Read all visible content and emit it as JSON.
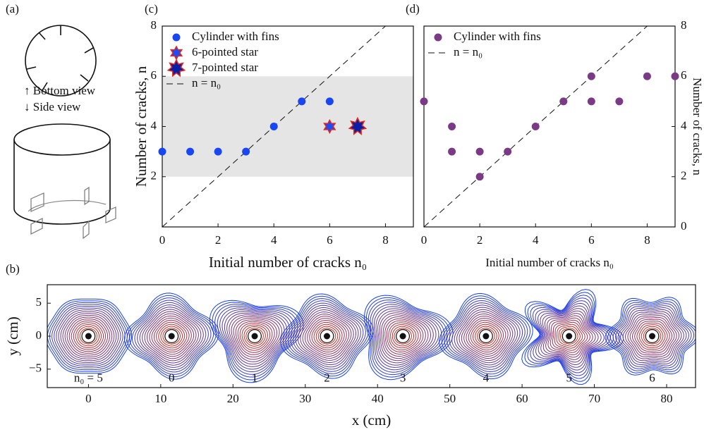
{
  "panel_a": {
    "label": "(a)",
    "bottom_view": "↑ Bottom view",
    "side_view": "↓ Side view"
  },
  "chart_data": [
    {
      "type": "scatter",
      "panel_label": "(c)",
      "x_label": "Initial number of cracks n₀",
      "y_label": "Number of cracks, n",
      "xlim": [
        0,
        9
      ],
      "ylim": [
        0,
        8
      ],
      "xticks": [
        0,
        2,
        4,
        6,
        8
      ],
      "yticks": [
        2,
        4,
        6,
        8
      ],
      "y_axis_side": "left",
      "band": [
        2,
        6
      ],
      "legend": "upper left",
      "reference_name": "n = n₀",
      "series": [
        {
          "name": "Cylinder with fins",
          "color": "#1746f2",
          "marker": "circle",
          "x": [
            0,
            1,
            2,
            3,
            4,
            5,
            6
          ],
          "values": [
            3,
            3,
            3,
            3,
            4,
            5,
            5
          ]
        },
        {
          "name": "6-pointed star",
          "color": "#1f4df5",
          "marker": "star6",
          "x": [
            6
          ],
          "values": [
            4
          ]
        },
        {
          "name": "7-pointed star",
          "color": "#0b1fa6",
          "marker": "star7",
          "x": [
            7
          ],
          "values": [
            4
          ]
        }
      ]
    },
    {
      "type": "scatter",
      "panel_label": "(d)",
      "x_label": "Initial number of cracks n₀",
      "y_label": "Number of cracks, n",
      "xlim": [
        0,
        9
      ],
      "ylim": [
        0,
        8
      ],
      "xticks": [
        0,
        2,
        4,
        6,
        8
      ],
      "yticks": [
        0,
        2,
        4,
        6,
        8
      ],
      "y_axis_side": "right",
      "legend": "upper left",
      "reference_name": "n = n₀",
      "series": [
        {
          "name": "Cylinder with fins",
          "color": "#7a3a86",
          "marker": "circle",
          "x": [
            0,
            1,
            1,
            2,
            2,
            3,
            4,
            5,
            6,
            6,
            7,
            8,
            9
          ],
          "values": [
            5,
            4,
            3,
            3,
            2,
            3,
            4,
            5,
            6,
            5,
            5,
            6,
            6
          ]
        }
      ]
    },
    {
      "type": "contour",
      "panel_label": "(b)",
      "x_label": "x (cm)",
      "y_label": "y (cm)",
      "xlim": [
        -5.7,
        84
      ],
      "ylim": [
        -7.8,
        7.8
      ],
      "xticks": [
        0,
        10,
        20,
        30,
        40,
        50,
        60,
        70,
        80
      ],
      "yticks": [
        {
          "value": -5,
          "label": "−5"
        },
        0,
        5
      ],
      "patterns": [
        {
          "label": "n₀ = 5",
          "x": 0
        },
        {
          "label": "0",
          "x": 11.5
        },
        {
          "label": "1",
          "x": 23
        },
        {
          "label": "2",
          "x": 33
        },
        {
          "label": "3",
          "x": 43.5
        },
        {
          "label": "4",
          "x": 55
        },
        {
          "label": "5",
          "x": 66.5
        },
        {
          "label": "6",
          "x": 78
        }
      ]
    }
  ]
}
